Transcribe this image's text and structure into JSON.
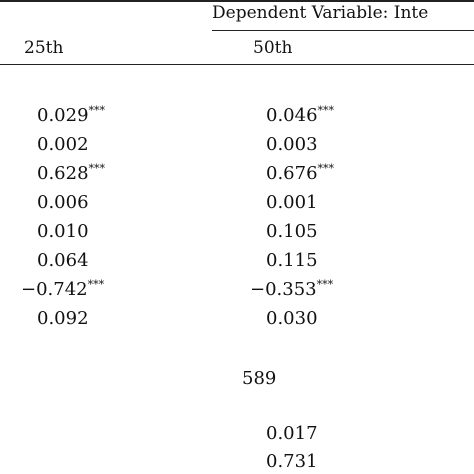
{
  "table": {
    "dependent_variable_title": "Dependent Variable: Inte",
    "columns": [
      "25th",
      "50th"
    ],
    "rows": [
      {
        "q25": {
          "value": "0.029",
          "stars": "***"
        },
        "q50": {
          "value": "0.046",
          "stars": "***"
        }
      },
      {
        "q25": {
          "value": "0.002",
          "stars": ""
        },
        "q50": {
          "value": "0.003",
          "stars": ""
        }
      },
      {
        "q25": {
          "value": "0.628",
          "stars": "***"
        },
        "q50": {
          "value": "0.676",
          "stars": "***"
        }
      },
      {
        "q25": {
          "value": "0.006",
          "stars": ""
        },
        "q50": {
          "value": "0.001",
          "stars": ""
        }
      },
      {
        "q25": {
          "value": "0.010",
          "stars": ""
        },
        "q50": {
          "value": "0.105",
          "stars": ""
        }
      },
      {
        "q25": {
          "value": "0.064",
          "stars": ""
        },
        "q50": {
          "value": "0.115",
          "stars": ""
        }
      },
      {
        "q25": {
          "value": "−0.742",
          "stars": "***"
        },
        "q50": {
          "value": "−0.353",
          "stars": "***"
        }
      },
      {
        "q25": {
          "value": "0.092",
          "stars": ""
        },
        "q50": {
          "value": "0.030",
          "stars": ""
        }
      }
    ],
    "observations": "589",
    "bottom_stats": [
      {
        "q50": "0.017"
      },
      {
        "q50": "0.731"
      }
    ]
  }
}
